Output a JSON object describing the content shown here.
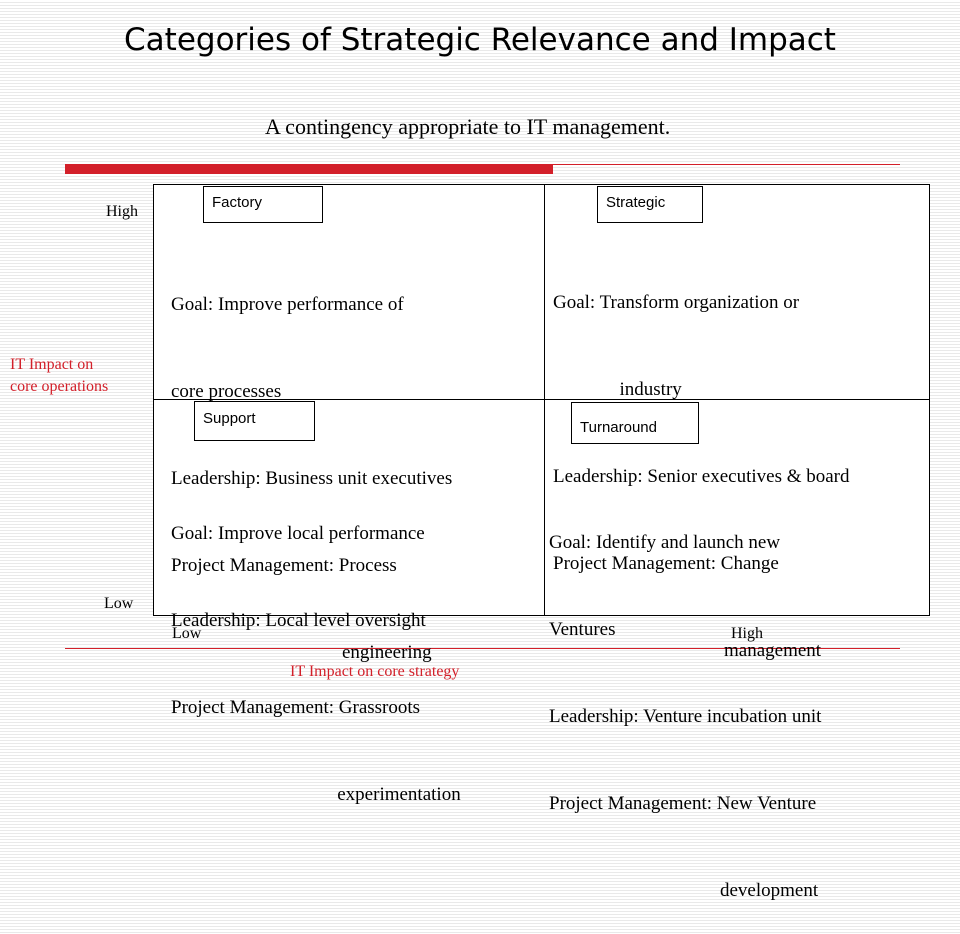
{
  "title": "Categories of Strategic Relevance and Impact",
  "subtitle": "A contingency appropriate to IT management.",
  "accent_color": "#d3202a",
  "axes": {
    "y_label_line1": "IT Impact on",
    "y_label_line2": "core operations",
    "y_high": "High",
    "y_low": "Low",
    "x_label": "IT Impact on core strategy",
    "x_low": "Low",
    "x_high": "High"
  },
  "quadrants": {
    "factory": {
      "label": "Factory",
      "lines": [
        "Goal: Improve performance of",
        "core processes",
        "Leadership: Business unit executives",
        "Project Management: Process",
        "                                    engineering"
      ]
    },
    "strategic": {
      "label": "Strategic",
      "lines": [
        "Goal: Transform organization or",
        "              industry",
        "Leadership: Senior executives & board",
        "Project Management: Change",
        "                                    management"
      ]
    },
    "support": {
      "label": "Support",
      "lines": [
        "Goal: Improve local performance",
        "Leadership: Local level oversight",
        "Project Management: Grassroots",
        "                                   experimentation"
      ]
    },
    "turnaround": {
      "label": "Turnaround",
      "lines": [
        "Goal: Identify and launch new",
        "Ventures",
        "Leadership: Venture incubation unit",
        "Project Management: New Venture",
        "                                    development"
      ]
    }
  }
}
